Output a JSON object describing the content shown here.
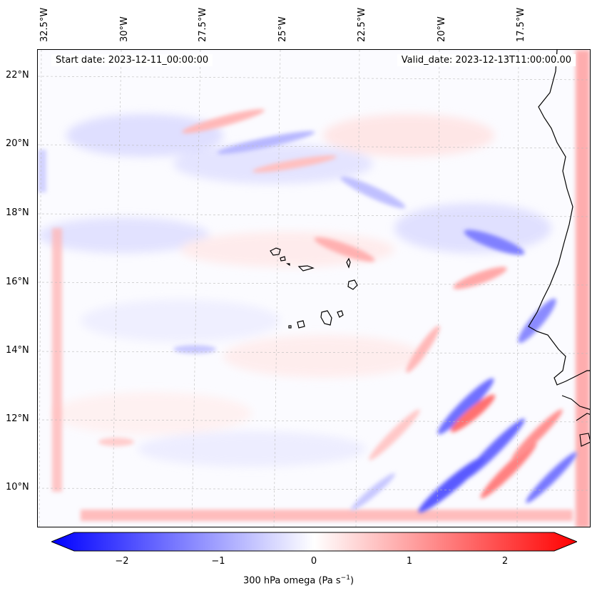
{
  "map": {
    "start_date": "Start date: 2023-12-11_00:00:00",
    "valid_date": "Valid_date: 2023-12-13T11:00:00.00",
    "lon_labels": [
      "32.5°W",
      "30°W",
      "27.5°W",
      "25°W",
      "22.5°W",
      "20°W",
      "17.5°W"
    ],
    "lat_labels": [
      "22°N",
      "20°N",
      "18°N",
      "16°N",
      "14°N",
      "12°N",
      "10°N"
    ],
    "colormap": "bwr",
    "colors": {
      "blue": "#0000ff",
      "white": "#ffffff",
      "red": "#ff0000",
      "coast": "#000000"
    }
  },
  "colorbar": {
    "ticks": [
      "−2",
      "−1",
      "0",
      "1",
      "2"
    ],
    "range": [
      -2.6,
      2.6
    ],
    "label": "300 hPa omega (Pa s",
    "label_sup": "−1",
    "label_close": ")"
  }
}
